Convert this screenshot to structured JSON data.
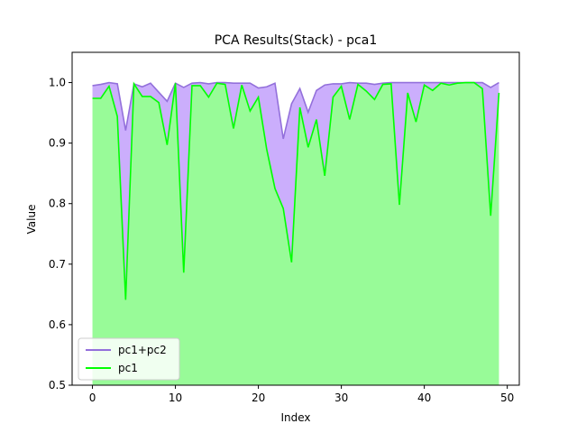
{
  "chart_data": {
    "type": "area",
    "title": "PCA Results(Stack) - pca1",
    "xlabel": "Index",
    "ylabel": "Value",
    "xlim": [
      -2.45,
      51.45
    ],
    "ylim": [
      0.5,
      1.05
    ],
    "xticks": [
      0,
      10,
      20,
      30,
      40,
      50
    ],
    "yticks": [
      0.5,
      0.6,
      0.7,
      0.8,
      0.9,
      1.0
    ],
    "xtick_labels": [
      "0",
      "10",
      "20",
      "30",
      "40",
      "50"
    ],
    "ytick_labels": [
      "0.5",
      "0.6",
      "0.7",
      "0.8",
      "0.9",
      "1.0"
    ],
    "legend_position": "lower-left",
    "x": [
      0,
      1,
      2,
      3,
      4,
      5,
      6,
      7,
      8,
      9,
      10,
      11,
      12,
      13,
      14,
      15,
      16,
      17,
      18,
      19,
      20,
      21,
      22,
      23,
      24,
      25,
      26,
      27,
      28,
      29,
      30,
      31,
      32,
      33,
      34,
      35,
      36,
      37,
      38,
      39,
      40,
      41,
      42,
      43,
      44,
      45,
      46,
      47,
      48,
      49
    ],
    "series": [
      {
        "name": "pc1+pc2",
        "color": "#9370db",
        "fill": "#cbaefc",
        "values": [
          0.995,
          0.997,
          1.0,
          0.998,
          0.921,
          0.998,
          0.993,
          0.999,
          0.984,
          0.969,
          0.999,
          0.992,
          0.999,
          1.0,
          0.998,
          1.0,
          1.0,
          0.999,
          0.999,
          0.999,
          0.991,
          0.993,
          0.999,
          0.907,
          0.965,
          0.99,
          0.951,
          0.987,
          0.996,
          0.998,
          0.998,
          1.0,
          0.999,
          0.999,
          0.997,
          0.999,
          1.0,
          1.0,
          1.0,
          1.0,
          1.0,
          1.0,
          1.0,
          1.0,
          1.0,
          1.0,
          1.0,
          1.0,
          0.992,
          1.0
        ]
      },
      {
        "name": "pc1",
        "color": "#00ff00",
        "fill": "#98fb98",
        "values": [
          0.974,
          0.974,
          0.994,
          0.944,
          0.641,
          0.998,
          0.977,
          0.977,
          0.967,
          0.897,
          0.999,
          0.686,
          0.995,
          0.995,
          0.976,
          0.999,
          0.997,
          0.924,
          0.996,
          0.953,
          0.976,
          0.89,
          0.825,
          0.792,
          0.703,
          0.959,
          0.893,
          0.939,
          0.846,
          0.976,
          0.994,
          0.939,
          0.997,
          0.986,
          0.972,
          0.997,
          0.998,
          0.798,
          0.983,
          0.935,
          0.996,
          0.987,
          0.999,
          0.996,
          0.999,
          1.0,
          1.0,
          0.99,
          0.78,
          0.983
        ]
      }
    ]
  }
}
